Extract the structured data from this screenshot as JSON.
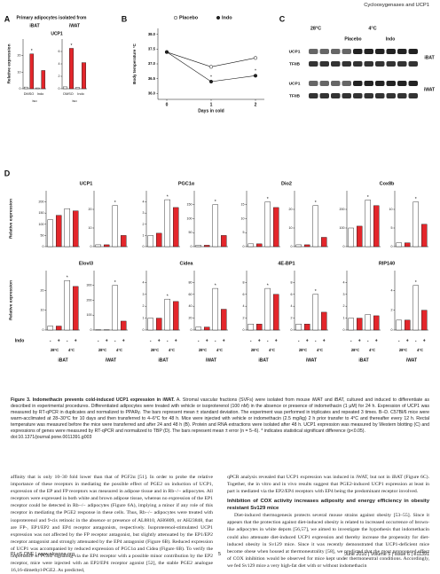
{
  "header": "Cyclooxygenases and UCP1",
  "figure": {
    "panel_a": {
      "label": "A",
      "title": "Primary adipocytes isolated from",
      "gene": "UCP1",
      "ylabel": "Relative expression",
      "treat": [
        "DMSO",
        "Indo"
      ],
      "iso": "iso",
      "charts": [
        {
          "name": "iBAT",
          "ylim": [
            0,
            30
          ],
          "yticks": [
            0,
            10,
            20
          ],
          "values": [
            1,
            21,
            0.5,
            11
          ],
          "annotations": [
            null,
            "*",
            null,
            null
          ]
        },
        {
          "name": "iWAT",
          "ylim": [
            0,
            8
          ],
          "yticks": [
            0,
            2,
            4,
            6
          ],
          "values": [
            0.3,
            6.5,
            0.2,
            4.2
          ],
          "annotations": [
            null,
            "*",
            null,
            null
          ]
        }
      ]
    },
    "panel_b": {
      "label": "B",
      "ylabel": "Body temperature °C",
      "xlabel": "Days in cold",
      "x": [
        0,
        1,
        2
      ],
      "xlim": [
        -0.2,
        2.2
      ],
      "xticks": [
        0,
        1,
        2
      ],
      "ylim": [
        35.8,
        38.2
      ],
      "yticks": [
        {
          "value": 36,
          "label": "36.0"
        },
        {
          "value": 36.5,
          "label": "36.5"
        },
        {
          "value": 37,
          "label": "37.0"
        },
        {
          "value": 37.5,
          "label": "37.5"
        },
        {
          "value": 38,
          "label": "38.0"
        }
      ],
      "series": [
        {
          "name": "Placebo",
          "color": "#ffffff",
          "values": [
            37.4,
            36.9,
            37.2
          ]
        },
        {
          "name": "Indo",
          "color": "#222222",
          "values": [
            37.4,
            36.4,
            36.6
          ]
        }
      ],
      "annotations": [
        null,
        "*",
        "*"
      ]
    },
    "panel_c": {
      "label": "C",
      "temps": [
        "28°C",
        "4°C"
      ],
      "groups": [
        "Placebo",
        "Indo"
      ],
      "rows": [
        "UCP1",
        "TFIIB",
        "UCP1",
        "TFIIB"
      ],
      "depots": [
        "iBAT",
        "iWAT"
      ]
    },
    "panel_d": {
      "label": "D",
      "ylabel": "Relative expression",
      "indo": "Indo",
      "signs": [
        "-",
        "+"
      ],
      "temps": [
        "28°C",
        "4°C"
      ],
      "depots": [
        "iBAT",
        "iWAT"
      ],
      "charts": [
        {
          "name": "UCP1",
          "ibat": {
            "ylim": [
              0,
              250
            ],
            "yticks": [
              0,
              50,
              100,
              150,
              200
            ],
            "values": [
              120,
              140,
              170,
              160
            ],
            "annotations": [
              null,
              null,
              null,
              null
            ]
          },
          "iwat": {
            "ylim": [
              0,
              30
            ],
            "yticks": [
              0,
              10,
              20
            ],
            "values": [
              1,
              1,
              22,
              6
            ],
            "annotations": [
              null,
              null,
              "*",
              null
            ]
          }
        },
        {
          "name": "PGC1α",
          "ibat": {
            "ylim": [
              0,
              5
            ],
            "yticks": [
              0,
              1,
              2,
              3,
              4
            ],
            "values": [
              1,
              1.2,
              4.2,
              3.5
            ],
            "annotations": [
              null,
              null,
              "*",
              null
            ]
          },
          "iwat": {
            "ylim": [
              0,
              200
            ],
            "yticks": [
              0,
              50,
              100,
              150
            ],
            "values": [
              5,
              5,
              150,
              40
            ],
            "annotations": [
              null,
              null,
              "*",
              null
            ]
          }
        },
        {
          "name": "Dio2",
          "ibat": {
            "ylim": [
              0,
              20
            ],
            "yticks": [
              0,
              5,
              10,
              15
            ],
            "values": [
              1,
              1,
              16,
              14
            ],
            "annotations": [
              null,
              null,
              "*",
              null
            ]
          },
          "iwat": {
            "ylim": [
              0,
              30
            ],
            "yticks": [
              0,
              10,
              20
            ],
            "values": [
              1,
              1,
              22,
              5
            ],
            "annotations": [
              null,
              null,
              "*",
              null
            ]
          }
        },
        {
          "name": "Cox8b",
          "ibat": {
            "ylim": [
              0,
              300
            ],
            "yticks": [
              0,
              100,
              200
            ],
            "values": [
              100,
              110,
              250,
              220
            ],
            "annotations": [
              null,
              null,
              "*",
              null
            ]
          },
          "iwat": {
            "ylim": [
              0,
              15
            ],
            "yticks": [
              0,
              5,
              10
            ],
            "values": [
              1,
              1,
              12,
              6
            ],
            "annotations": [
              null,
              null,
              "*",
              null
            ]
          }
        },
        {
          "name": "Elovl3",
          "ibat": {
            "ylim": [
              0,
              30
            ],
            "yticks": [
              0,
              10,
              20
            ],
            "values": [
              2,
              2,
              25,
              22
            ],
            "annotations": [
              null,
              null,
              "*",
              null
            ]
          },
          "iwat": {
            "ylim": [
              0,
              400
            ],
            "yticks": [
              0,
              100,
              200,
              300
            ],
            "values": [
              2,
              2,
              300,
              60
            ],
            "annotations": [
              null,
              null,
              "*",
              null
            ]
          }
        },
        {
          "name": "Cidea",
          "ibat": {
            "ylim": [
              0,
              5
            ],
            "yticks": [
              0,
              1,
              2,
              3,
              4
            ],
            "values": [
              1,
              1,
              2.6,
              2.4
            ],
            "annotations": [
              null,
              null,
              "*",
              null
            ]
          },
          "iwat": {
            "ylim": [
              0,
              100
            ],
            "yticks": [
              0,
              20,
              40,
              60,
              80
            ],
            "values": [
              5,
              5,
              70,
              35
            ],
            "annotations": [
              null,
              null,
              "*",
              null
            ]
          }
        },
        {
          "name": "4E-BP1",
          "ibat": {
            "ylim": [
              0,
              10
            ],
            "yticks": [
              0,
              2,
              4,
              6,
              8
            ],
            "values": [
              1,
              1,
              7,
              6
            ],
            "annotations": [
              null,
              null,
              "*",
              null
            ]
          },
          "iwat": {
            "ylim": [
              0,
              10
            ],
            "yticks": [
              0,
              2,
              4,
              6,
              8
            ],
            "values": [
              1,
              1,
              6,
              3
            ],
            "annotations": [
              null,
              null,
              "*",
              null
            ]
          }
        },
        {
          "name": "RIP140",
          "ibat": {
            "ylim": [
              0,
              5
            ],
            "yticks": [
              0,
              1,
              2,
              3,
              4
            ],
            "values": [
              1,
              1,
              1.3,
              1.2
            ],
            "annotations": [
              null,
              null,
              null,
              null
            ]
          },
          "iwat": {
            "ylim": [
              0,
              6
            ],
            "yticks": [
              0,
              2,
              4
            ],
            "values": [
              1,
              1,
              4.5,
              2
            ],
            "annotations": [
              null,
              null,
              "*",
              null
            ]
          }
        }
      ]
    }
  },
  "caption": {
    "title": "Figure 3. Indomethacin prevents cold-induced UCP1 expression in iWAT.",
    "text": "A. Stromal vascular fractions (SVFs) were isolated from mouse iWAT and iBAT, cultured and induced to differentiate as described in experimental procedures. Differentiated adipocytes were treated with vehicle or isoproterenol (100 nM) in the absence or presence of indomethacin (1 μM) for 24 h. Expression of UCP1 was measured by RT-qPCR in duplicates and normalized to PPARγ. The bars represent mean ± standard deviation. The experiment was performed in triplicates and repeated 3 times. B–D. C57Bl/6 mice were warm-acclimated at 28–30°C for 10 days and then transferred to 4–6°C for 48 h. Mice were injected with vehicle or indomethacin (2.5 mg/kg) 2 h prior transfer to 4°C and thereafter every 12 h. Rectal temperature was measured before the mice were transferred and after 24 and 48 h (B). Protein and RNA extractions were isolated after 48 h. UCP1 expression was measured by Western blotting (C) and expressions of genes were measured by RT-qPCR and normalized to TBP (D). The bars represent mean ± error (n = 5–6). * indicates statistical significant difference (p<0.05).",
    "doi": "doi:10.1371/journal.pone.0011391.g003"
  },
  "body": {
    "left": "affinity that is only 10–30 fold lower than that of PGF2α [51]. In order to probe the relative importance of these receptors in mediating the possible effect of PGE2 on induction of UCP1, expression of the EP and FP receptors was measured in adipose tissue and in Rb−/− adipocytes. All receptors were expressed in both white and brown adipose tissue, whereas no expression of the EP1 receptor could be detected in Rb−/− adipocytes (Figure 6A), implying a minor if any role of this receptor in mediating the PGE2 response in these cells. Thus, Rb−/− adipocytes were treated with isoproterenol and 9-cis retinoic in the absence or presence of AL8810, AH6809, or AH23848, that are FP-, EP1/EP2 and EP4 receptor antagonists, respectively. Isoproterenol-stimulated UCP1 expression was not affected by the FP receptor antagonist, but slightly attenuated by the EP1/EP2 receptor antagonist and strongly attenuated by the EP4 antagonist (Figure 6B). Reduced expression of UCP1 was accompanied by reduced expression of PGC1α and Cidea (Figure 6B). To verify the importance of PGE2 signaling via the EP4 receptor with a possible minor contribution by the EP2 receptor, mice were injected with an EP2/EP4 receptor agonist [52], the stable PGE2 analogue 16,16-dimethyl-PGE2. As predicted,",
    "right_1": "qPCR analysis revealed that UCP1 expression was induced in iWAT, but not in iBAT (Figure 6C). Together, the in vitro and in vivo results suggest that PGE2-induced UCP1 expression at least in part is mediated via the EP2/EP4 receptors with EP4 being the predominant receptor involved.",
    "heading": "Inhibition of COX activity increases adiposity and energy efficiency in obesity resistant Sv129 mice",
    "right_2": "Diet-induced thermogenesis protects several mouse strains against obesity [53–55]. Since it appears that the protection against diet-induced obesity is related to increased occurrence of brown-like adipocytes in white depots [56,57], we aimed to investigate the hypothesis that indomethacin could also attenuate diet-induced UCP1 expression and thereby increase the propensity for diet-induced obesity in Sv129 mice. Since it was recently demonstrated that UCP1-deficient mice become obese when housed at thermoneutrality [58], we predicted that the most pronounced effect of COX inhibition would be observed for mice kept under thermoneutral conditions. Accordingly, we fed Sv129 mice a very high-fat diet with or without indomethacin"
  },
  "footer": {
    "journal": "PLoS ONE | www.plosone.org",
    "page": "5",
    "issue": "June 2010 | Volume 5 | Issue 6 | e11391"
  }
}
